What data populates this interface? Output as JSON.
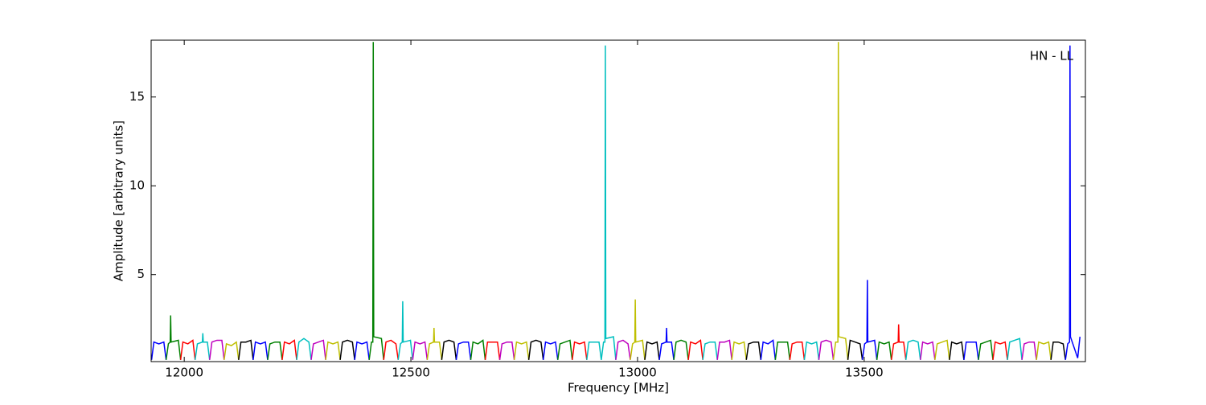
{
  "chart_data": {
    "type": "line",
    "xlabel": "Frequency [MHz]",
    "ylabel": "Amplitude [arbitrary units]",
    "annotation": "HN - LL",
    "xlim": [
      11927,
      13988
    ],
    "ylim": [
      0.1,
      18.2
    ],
    "xticks": [
      12000,
      12500,
      13000,
      13500
    ],
    "yticks": [
      5,
      10,
      15
    ],
    "series": [
      {
        "color": "#0000ff",
        "x": [
          11928,
          11933,
          11944,
          11955,
          11960
        ],
        "values": [
          0.2,
          1.2,
          1.1,
          1.2,
          0.2
        ]
      },
      {
        "color": "#008000",
        "x": [
          11960,
          11965,
          11969,
          11970,
          11971,
          11987,
          11992
        ],
        "values": [
          0.2,
          1.1,
          1.2,
          2.7,
          1.2,
          1.3,
          0.2
        ]
      },
      {
        "color": "#ff0000",
        "x": [
          11992,
          11997,
          12008,
          12019,
          12024
        ],
        "values": [
          0.2,
          1.2,
          1.1,
          1.3,
          0.2
        ]
      },
      {
        "color": "#00bfbf",
        "x": [
          12024,
          12029,
          12040,
          12041,
          12042,
          12051,
          12056
        ],
        "values": [
          0.2,
          1.1,
          1.2,
          1.7,
          1.2,
          1.2,
          0.2
        ]
      },
      {
        "color": "#bf00bf",
        "x": [
          12056,
          12061,
          12072,
          12083,
          12088
        ],
        "values": [
          0.2,
          1.2,
          1.3,
          1.3,
          0.2
        ]
      },
      {
        "color": "#bfbf00",
        "x": [
          12088,
          12093,
          12104,
          12115,
          12120
        ],
        "values": [
          0.2,
          1.1,
          1.0,
          1.2,
          0.2
        ]
      },
      {
        "color": "#000000",
        "x": [
          12120,
          12125,
          12136,
          12147,
          12152
        ],
        "values": [
          0.2,
          1.2,
          1.2,
          1.3,
          0.2
        ]
      },
      {
        "color": "#0000ff",
        "x": [
          12152,
          12157,
          12168,
          12179,
          12184
        ],
        "values": [
          0.2,
          1.2,
          1.1,
          1.2,
          0.2
        ]
      },
      {
        "color": "#008000",
        "x": [
          12184,
          12189,
          12200,
          12211,
          12216
        ],
        "values": [
          0.2,
          1.1,
          1.2,
          1.2,
          0.2
        ]
      },
      {
        "color": "#ff0000",
        "x": [
          12216,
          12221,
          12232,
          12243,
          12248
        ],
        "values": [
          0.2,
          1.2,
          1.1,
          1.3,
          0.2
        ]
      },
      {
        "color": "#00bfbf",
        "x": [
          12248,
          12253,
          12264,
          12275,
          12280
        ],
        "values": [
          0.2,
          1.2,
          1.4,
          1.2,
          0.2
        ]
      },
      {
        "color": "#bf00bf",
        "x": [
          12280,
          12285,
          12296,
          12307,
          12312
        ],
        "values": [
          0.2,
          1.1,
          1.2,
          1.3,
          0.2
        ]
      },
      {
        "color": "#bfbf00",
        "x": [
          12312,
          12317,
          12328,
          12339,
          12344
        ],
        "values": [
          0.2,
          1.2,
          1.1,
          1.2,
          0.2
        ]
      },
      {
        "color": "#000000",
        "x": [
          12344,
          12349,
          12360,
          12371,
          12376
        ],
        "values": [
          0.2,
          1.2,
          1.3,
          1.2,
          0.2
        ]
      },
      {
        "color": "#0000ff",
        "x": [
          12376,
          12381,
          12392,
          12403,
          12408
        ],
        "values": [
          0.2,
          1.2,
          1.1,
          1.2,
          0.2
        ]
      },
      {
        "color": "#008000",
        "x": [
          12408,
          12413,
          12416,
          12417,
          12418,
          12435,
          12440
        ],
        "values": [
          0.2,
          1.2,
          1.2,
          18.1,
          1.5,
          1.4,
          0.2
        ]
      },
      {
        "color": "#ff0000",
        "x": [
          12440,
          12445,
          12456,
          12467,
          12472
        ],
        "values": [
          0.2,
          1.2,
          1.3,
          1.1,
          0.2
        ]
      },
      {
        "color": "#00bfbf",
        "x": [
          12472,
          12477,
          12481,
          12482,
          12483,
          12499,
          12504
        ],
        "values": [
          0.2,
          1.1,
          1.2,
          3.5,
          1.2,
          1.3,
          0.2
        ]
      },
      {
        "color": "#bf00bf",
        "x": [
          12504,
          12509,
          12520,
          12531,
          12536
        ],
        "values": [
          0.2,
          1.2,
          1.1,
          1.2,
          0.2
        ]
      },
      {
        "color": "#bfbf00",
        "x": [
          12536,
          12541,
          12550,
          12551,
          12552,
          12563,
          12568
        ],
        "values": [
          0.2,
          1.1,
          1.2,
          2.0,
          1.2,
          1.2,
          0.2
        ]
      },
      {
        "color": "#000000",
        "x": [
          12568,
          12573,
          12584,
          12595,
          12600
        ],
        "values": [
          0.2,
          1.2,
          1.3,
          1.2,
          0.2
        ]
      },
      {
        "color": "#0000ff",
        "x": [
          12600,
          12605,
          12616,
          12627,
          12632
        ],
        "values": [
          0.2,
          1.1,
          1.2,
          1.2,
          0.2
        ]
      },
      {
        "color": "#008000",
        "x": [
          12632,
          12637,
          12648,
          12659,
          12664
        ],
        "values": [
          0.2,
          1.2,
          1.1,
          1.3,
          0.2
        ]
      },
      {
        "color": "#ff0000",
        "x": [
          12664,
          12669,
          12680,
          12691,
          12696
        ],
        "values": [
          0.2,
          1.2,
          1.2,
          1.2,
          0.2
        ]
      },
      {
        "color": "#bf00bf",
        "x": [
          12696,
          12701,
          12712,
          12723,
          12728
        ],
        "values": [
          0.2,
          1.1,
          1.2,
          1.2,
          0.2
        ]
      },
      {
        "color": "#bfbf00",
        "x": [
          12728,
          12733,
          12744,
          12755,
          12760
        ],
        "values": [
          0.2,
          1.2,
          1.1,
          1.2,
          0.2
        ]
      },
      {
        "color": "#000000",
        "x": [
          12760,
          12765,
          12776,
          12787,
          12792
        ],
        "values": [
          0.2,
          1.2,
          1.3,
          1.2,
          0.2
        ]
      },
      {
        "color": "#0000ff",
        "x": [
          12792,
          12797,
          12808,
          12819,
          12824
        ],
        "values": [
          0.2,
          1.2,
          1.1,
          1.2,
          0.2
        ]
      },
      {
        "color": "#008000",
        "x": [
          12824,
          12829,
          12840,
          12851,
          12856
        ],
        "values": [
          0.2,
          1.1,
          1.2,
          1.3,
          0.2
        ]
      },
      {
        "color": "#ff0000",
        "x": [
          12856,
          12861,
          12872,
          12883,
          12888
        ],
        "values": [
          0.2,
          1.2,
          1.1,
          1.2,
          0.2
        ]
      },
      {
        "color": "#00bfbf",
        "x": [
          12888,
          12893,
          12904,
          12915,
          12920
        ],
        "values": [
          0.2,
          1.2,
          1.2,
          1.2,
          0.2
        ]
      },
      {
        "color": "#00bfbf",
        "x": [
          12920,
          12925,
          12928,
          12929,
          12930,
          12947,
          12952
        ],
        "values": [
          0.2,
          1.2,
          1.2,
          17.9,
          1.4,
          1.5,
          0.2
        ]
      },
      {
        "color": "#bf00bf",
        "x": [
          12952,
          12957,
          12968,
          12979,
          12984
        ],
        "values": [
          0.2,
          1.2,
          1.3,
          1.1,
          0.2
        ]
      },
      {
        "color": "#bfbf00",
        "x": [
          12984,
          12989,
          12994,
          12995,
          12996,
          13011,
          13016
        ],
        "values": [
          0.2,
          1.1,
          1.2,
          3.6,
          1.2,
          1.3,
          0.2
        ]
      },
      {
        "color": "#000000",
        "x": [
          13016,
          13021,
          13032,
          13043,
          13048
        ],
        "values": [
          0.2,
          1.2,
          1.1,
          1.2,
          0.2
        ]
      },
      {
        "color": "#0000ff",
        "x": [
          13048,
          13053,
          13063,
          13064,
          13065,
          13075,
          13080
        ],
        "values": [
          0.2,
          1.1,
          1.2,
          2.0,
          1.2,
          1.2,
          0.2
        ]
      },
      {
        "color": "#008000",
        "x": [
          13080,
          13085,
          13096,
          13107,
          13112
        ],
        "values": [
          0.2,
          1.2,
          1.3,
          1.2,
          0.2
        ]
      },
      {
        "color": "#ff0000",
        "x": [
          13112,
          13117,
          13128,
          13139,
          13144
        ],
        "values": [
          0.2,
          1.2,
          1.1,
          1.3,
          0.2
        ]
      },
      {
        "color": "#00bfbf",
        "x": [
          13144,
          13149,
          13160,
          13171,
          13176
        ],
        "values": [
          0.2,
          1.1,
          1.2,
          1.2,
          0.2
        ]
      },
      {
        "color": "#bf00bf",
        "x": [
          13176,
          13181,
          13192,
          13203,
          13208
        ],
        "values": [
          0.2,
          1.2,
          1.2,
          1.3,
          0.2
        ]
      },
      {
        "color": "#bfbf00",
        "x": [
          13208,
          13213,
          13224,
          13235,
          13240
        ],
        "values": [
          0.2,
          1.2,
          1.1,
          1.2,
          0.2
        ]
      },
      {
        "color": "#000000",
        "x": [
          13240,
          13245,
          13256,
          13267,
          13272
        ],
        "values": [
          0.2,
          1.1,
          1.2,
          1.2,
          0.2
        ]
      },
      {
        "color": "#0000ff",
        "x": [
          13272,
          13277,
          13288,
          13299,
          13304
        ],
        "values": [
          0.2,
          1.2,
          1.1,
          1.3,
          0.2
        ]
      },
      {
        "color": "#008000",
        "x": [
          13304,
          13309,
          13320,
          13331,
          13336
        ],
        "values": [
          0.2,
          1.2,
          1.2,
          1.2,
          0.2
        ]
      },
      {
        "color": "#ff0000",
        "x": [
          13336,
          13341,
          13352,
          13363,
          13368
        ],
        "values": [
          0.2,
          1.1,
          1.2,
          1.2,
          0.2
        ]
      },
      {
        "color": "#00bfbf",
        "x": [
          13368,
          13373,
          13384,
          13395,
          13400
        ],
        "values": [
          0.2,
          1.2,
          1.1,
          1.2,
          0.2
        ]
      },
      {
        "color": "#bf00bf",
        "x": [
          13400,
          13405,
          13416,
          13427,
          13432
        ],
        "values": [
          0.2,
          1.2,
          1.3,
          1.2,
          0.2
        ]
      },
      {
        "color": "#bfbf00",
        "x": [
          13432,
          13437,
          13442,
          13443,
          13444,
          13459,
          13464
        ],
        "values": [
          0.2,
          1.2,
          1.2,
          18.1,
          1.5,
          1.4,
          0.2
        ]
      },
      {
        "color": "#000000",
        "x": [
          13464,
          13469,
          13480,
          13491,
          13496
        ],
        "values": [
          0.2,
          1.3,
          1.2,
          1.1,
          0.2
        ]
      },
      {
        "color": "#0000ff",
        "x": [
          13496,
          13501,
          13506,
          13507,
          13508,
          13523,
          13528
        ],
        "values": [
          0.2,
          1.1,
          1.2,
          4.7,
          1.2,
          1.3,
          0.2
        ]
      },
      {
        "color": "#008000",
        "x": [
          13528,
          13533,
          13544,
          13555,
          13560
        ],
        "values": [
          0.2,
          1.2,
          1.1,
          1.2,
          0.2
        ]
      },
      {
        "color": "#ff0000",
        "x": [
          13560,
          13565,
          13575,
          13576,
          13577,
          13587,
          13592
        ],
        "values": [
          0.2,
          1.1,
          1.2,
          2.2,
          1.2,
          1.2,
          0.2
        ]
      },
      {
        "color": "#00bfbf",
        "x": [
          13592,
          13597,
          13608,
          13619,
          13624
        ],
        "values": [
          0.2,
          1.2,
          1.3,
          1.2,
          0.2
        ]
      },
      {
        "color": "#bf00bf",
        "x": [
          13624,
          13629,
          13640,
          13651,
          13656
        ],
        "values": [
          0.2,
          1.2,
          1.1,
          1.2,
          0.2
        ]
      },
      {
        "color": "#bfbf00",
        "x": [
          13656,
          13661,
          13672,
          13683,
          13688
        ],
        "values": [
          0.2,
          1.1,
          1.2,
          1.3,
          0.2
        ]
      },
      {
        "color": "#000000",
        "x": [
          13688,
          13693,
          13704,
          13715,
          13720
        ],
        "values": [
          0.2,
          1.2,
          1.1,
          1.2,
          0.2
        ]
      },
      {
        "color": "#0000ff",
        "x": [
          13720,
          13725,
          13736,
          13747,
          13752
        ],
        "values": [
          0.2,
          1.2,
          1.2,
          1.2,
          0.2
        ]
      },
      {
        "color": "#008000",
        "x": [
          13752,
          13757,
          13768,
          13779,
          13784
        ],
        "values": [
          0.2,
          1.1,
          1.2,
          1.3,
          0.2
        ]
      },
      {
        "color": "#ff0000",
        "x": [
          13784,
          13789,
          13800,
          13811,
          13816
        ],
        "values": [
          0.2,
          1.2,
          1.1,
          1.2,
          0.2
        ]
      },
      {
        "color": "#00bfbf",
        "x": [
          13816,
          13821,
          13832,
          13843,
          13848
        ],
        "values": [
          0.2,
          1.2,
          1.3,
          1.4,
          0.2
        ]
      },
      {
        "color": "#bf00bf",
        "x": [
          13848,
          13853,
          13864,
          13875,
          13880
        ],
        "values": [
          0.2,
          1.1,
          1.2,
          1.2,
          0.2
        ]
      },
      {
        "color": "#bfbf00",
        "x": [
          13880,
          13885,
          13896,
          13907,
          13912
        ],
        "values": [
          0.2,
          1.2,
          1.1,
          1.2,
          0.2
        ]
      },
      {
        "color": "#000000",
        "x": [
          13912,
          13917,
          13928,
          13939,
          13944
        ],
        "values": [
          0.2,
          1.2,
          1.2,
          1.1,
          0.2
        ]
      },
      {
        "color": "#0000ff",
        "x": [
          13944,
          13949,
          13953,
          13954,
          13955,
          13971,
          13976
        ],
        "values": [
          0.2,
          1.1,
          1.2,
          17.9,
          1.5,
          0.3,
          1.5
        ]
      }
    ]
  }
}
